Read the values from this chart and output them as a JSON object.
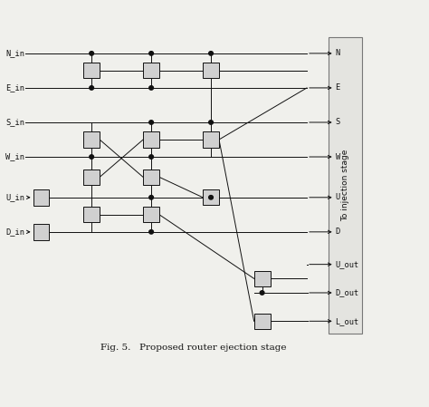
{
  "title": "Fig. 5.   Proposed router ejection stage",
  "bg_color": "#f0f0ec",
  "line_color": "#111111",
  "box_fill": "#d0d0d0",
  "box_edge": "#111111",
  "inputs": [
    "N_in",
    "E_in",
    "S_in",
    "W_in",
    "U_in",
    "D_in"
  ],
  "outputs_main": [
    "N",
    "E",
    "S",
    "W",
    "U",
    "D"
  ],
  "outputs_extra": [
    "U_out",
    "D_out",
    "L_out"
  ],
  "rot_label": "To injection stage",
  "fig_width": 4.74,
  "fig_height": 4.49,
  "title_fontsize": 7.5
}
